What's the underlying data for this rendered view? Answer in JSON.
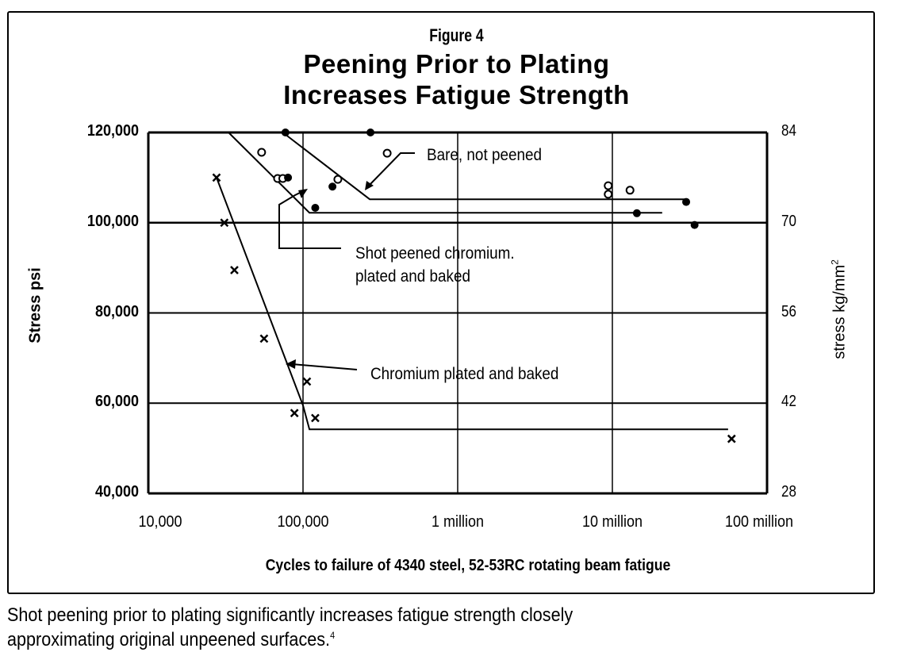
{
  "figure": {
    "number_label": "Figure 4",
    "title_line1": "Peening Prior to Plating",
    "title_line2": "Increases Fatigue Strength"
  },
  "caption": {
    "line1": "Shot peening prior to plating significantly increases fatigue strength closely",
    "line2": "approximating original unpeened surfaces.",
    "footnote_ref": "4"
  },
  "chart_data": {
    "type": "scatter",
    "title": "Peening Prior to Plating Increases Fatigue Strength",
    "xlabel": "Cycles to failure of 4340 steel, 52-53RC rotating beam fatigue",
    "ylabel": "Stress psi",
    "ylabel_right": "stress kg/mm",
    "ylabel_right_sup": "2",
    "x_scale": "log",
    "xlim": [
      10000,
      100000000
    ],
    "ylim": [
      40000,
      120000
    ],
    "ylim_right": [
      28,
      84
    ],
    "grid": true,
    "x_ticks": [
      {
        "value": 10000,
        "label": "10,000"
      },
      {
        "value": 100000,
        "label": "100,000"
      },
      {
        "value": 1000000,
        "label": "1 million"
      },
      {
        "value": 10000000,
        "label": "10 million"
      },
      {
        "value": 100000000,
        "label": "100 million"
      }
    ],
    "y_ticks": [
      {
        "value": 120000,
        "label": "120,000"
      },
      {
        "value": 100000,
        "label": "100,000"
      },
      {
        "value": 80000,
        "label": "80,000"
      },
      {
        "value": 60000,
        "label": "60,000"
      },
      {
        "value": 40000,
        "label": "40,000"
      }
    ],
    "y_ticks_right": [
      {
        "value": 120000,
        "label": "84"
      },
      {
        "value": 100000,
        "label": "70"
      },
      {
        "value": 80000,
        "label": "56"
      },
      {
        "value": 60000,
        "label": "42"
      },
      {
        "value": 40000,
        "label": "28"
      }
    ],
    "series": [
      {
        "name": "Bare, not peened",
        "marker": "open-circle",
        "points": [
          [
            54000,
            115600
          ],
          [
            68500,
            109800
          ],
          [
            74000,
            109800
          ],
          [
            168000,
            109600
          ],
          [
            350000,
            115400
          ],
          [
            9400000,
            108200
          ],
          [
            9400000,
            106300
          ],
          [
            13000000,
            107200
          ]
        ],
        "fit_line": [
          [
            74000,
            120000
          ],
          [
            270000,
            105200
          ],
          [
            30000000,
            105200
          ]
        ]
      },
      {
        "name": "Shot peened chromium, plated and baked",
        "marker": "filled-circle",
        "points": [
          [
            77000,
            120000
          ],
          [
            273000,
            120000
          ],
          [
            80000,
            110000
          ],
          [
            155000,
            108000
          ],
          [
            120000,
            103300
          ],
          [
            14400000,
            102100
          ],
          [
            30000000,
            104600
          ],
          [
            34000000,
            99500
          ]
        ],
        "fit_line": [
          [
            33000,
            120000
          ],
          [
            110000,
            102200
          ],
          [
            21000000,
            102200
          ]
        ]
      },
      {
        "name": "Chromium plated and baked",
        "marker": "x",
        "points": [
          [
            27600,
            110000
          ],
          [
            31000,
            100000
          ],
          [
            36000,
            89500
          ],
          [
            56000,
            74300
          ],
          [
            106000,
            64800
          ],
          [
            88000,
            57800
          ],
          [
            120000,
            56700
          ],
          [
            59000000,
            52100
          ]
        ],
        "fit_line": [
          [
            27600,
            110000
          ],
          [
            100000,
            59500
          ],
          [
            110000,
            54200
          ],
          [
            56000000,
            54200
          ]
        ]
      }
    ],
    "reference_line": {
      "y": 100000,
      "x_from": 10000,
      "x_to": 100000000
    },
    "annotations": [
      {
        "text": "Bare, not peened",
        "series": "Bare, not peened"
      },
      {
        "text_line1": "Shot peened chromium.",
        "text_line2": "plated and baked",
        "series": "Shot peened chromium, plated and baked"
      },
      {
        "text": "Chromium plated and baked",
        "series": "Chromium plated and baked"
      }
    ]
  }
}
